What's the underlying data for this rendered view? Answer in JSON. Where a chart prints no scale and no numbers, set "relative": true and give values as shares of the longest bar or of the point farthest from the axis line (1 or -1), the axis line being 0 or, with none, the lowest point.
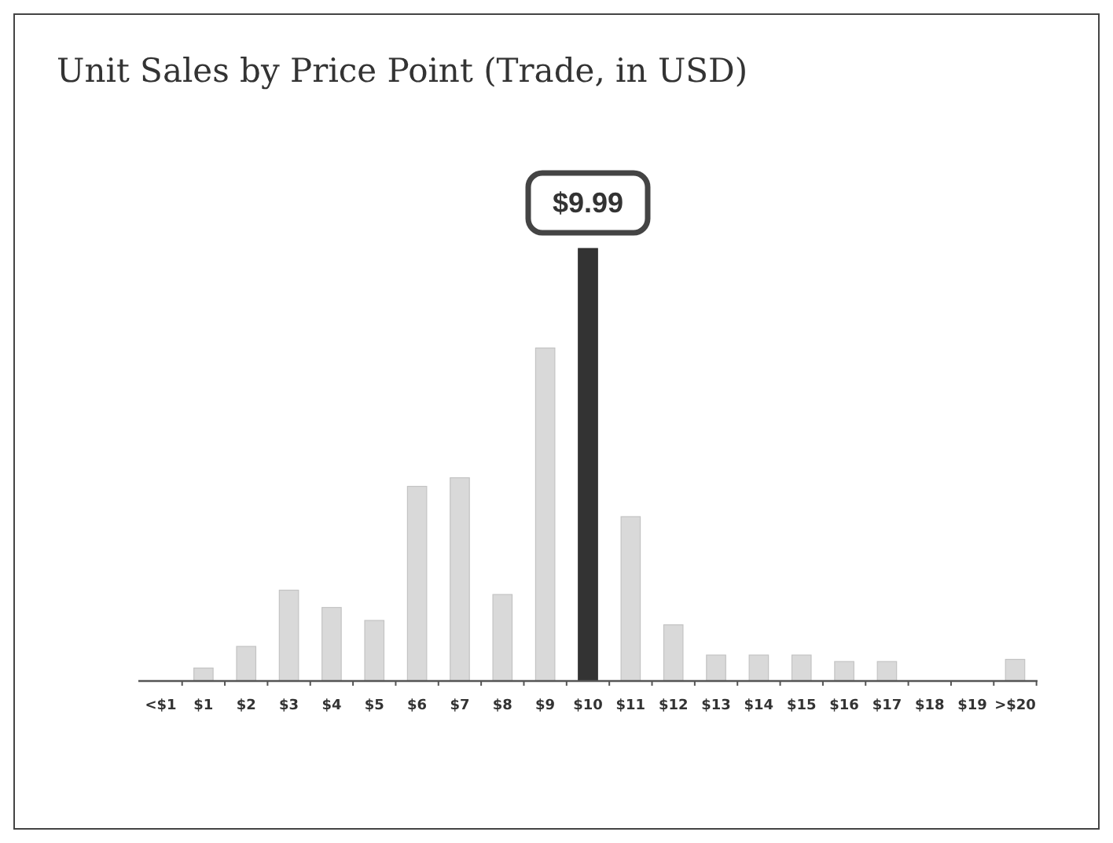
{
  "chart_data": {
    "type": "bar",
    "title": "Unit Sales by Price Point (Trade, in USD)",
    "relative": true,
    "categories": [
      "<$1",
      "$1",
      "$2",
      "$3",
      "$4",
      "$5",
      "$6",
      "$7",
      "$8",
      "$9",
      "$10",
      "$11",
      "$12",
      "$13",
      "$14",
      "$15",
      "$16",
      "$17",
      "$18",
      "$19",
      ">$20"
    ],
    "values": [
      0,
      0.03,
      0.08,
      0.21,
      0.17,
      0.14,
      0.45,
      0.47,
      0.2,
      0.77,
      1,
      0.38,
      0.13,
      0.06,
      0.06,
      0.06,
      0.045,
      0.045,
      0,
      0,
      0.05
    ],
    "colors": [
      "#d9d9d9",
      "#d9d9d9",
      "#d9d9d9",
      "#d9d9d9",
      "#d9d9d9",
      "#d9d9d9",
      "#d9d9d9",
      "#d9d9d9",
      "#d9d9d9",
      "#d9d9d9",
      "#333333",
      "#d9d9d9",
      "#d9d9d9",
      "#d9d9d9",
      "#d9d9d9",
      "#d9d9d9",
      "#d9d9d9",
      "#d9d9d9",
      "#d9d9d9",
      "#d9d9d9",
      "#d9d9d9"
    ],
    "annotations": [
      {
        "text": "$9.99",
        "x": "$10",
        "y": 1
      }
    ],
    "grid": false
  }
}
